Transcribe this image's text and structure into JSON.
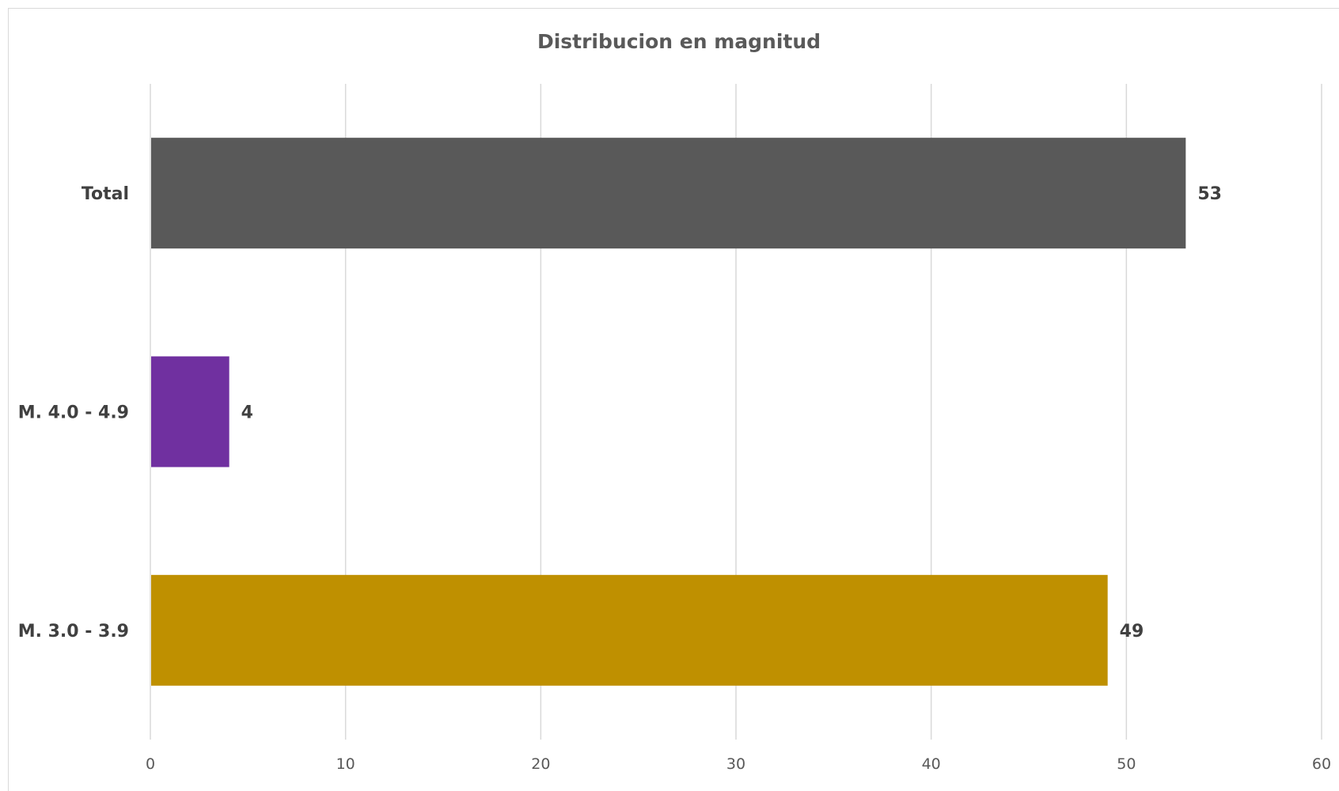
{
  "chart_data": {
    "type": "bar",
    "orientation": "horizontal",
    "title": "Distribucion en magnitud",
    "xlabel": "",
    "ylabel": "",
    "categories": [
      "Total",
      "M. 4.0 - 4.9",
      "M. 3.0 - 3.9"
    ],
    "values": [
      53,
      4,
      49
    ],
    "colors": [
      "#595959",
      "#7030a0",
      "#bf9000"
    ],
    "xlim": [
      0,
      60
    ],
    "x_ticks": [
      0,
      10,
      20,
      30,
      40,
      50,
      60
    ],
    "gridlines": "vertical",
    "legend": "none",
    "data_labels": true
  }
}
